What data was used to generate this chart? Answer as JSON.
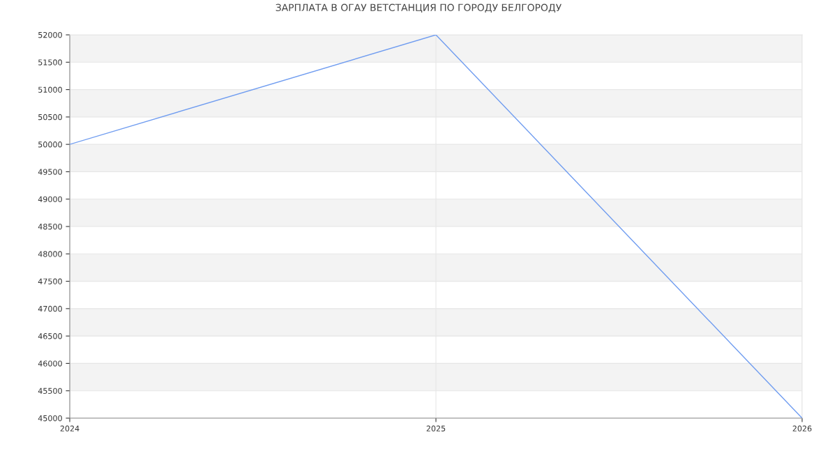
{
  "chart_data": {
    "type": "line",
    "title": "ЗАРПЛАТА В ОГАУ ВЕТСТАНЦИЯ ПО ГОРОДУ БЕЛГОРОДУ",
    "x": [
      2024,
      2025,
      2026
    ],
    "series": [
      {
        "color": "#6f9cf0",
        "values": [
          50000,
          52000,
          45000
        ]
      }
    ],
    "xlim": [
      2024,
      2026
    ],
    "xticks": [
      2024,
      2025,
      2026
    ],
    "ylim": [
      45000,
      52000
    ],
    "yticks": [
      45000,
      45500,
      46000,
      46500,
      47000,
      47500,
      48000,
      48500,
      49000,
      49500,
      50000,
      50500,
      51000,
      51500,
      52000
    ],
    "bands": [
      {
        "axis": "y",
        "from": 45500,
        "to": 46000,
        "color": "#f3f3f3"
      },
      {
        "axis": "y",
        "from": 46500,
        "to": 47000,
        "color": "#f3f3f3"
      },
      {
        "axis": "y",
        "from": 47500,
        "to": 48000,
        "color": "#f3f3f3"
      },
      {
        "axis": "y",
        "from": 48500,
        "to": 49000,
        "color": "#f3f3f3"
      },
      {
        "axis": "y",
        "from": 49500,
        "to": 50000,
        "color": "#f3f3f3"
      },
      {
        "axis": "y",
        "from": 50500,
        "to": 51000,
        "color": "#f3f3f3"
      },
      {
        "axis": "y",
        "from": 51500,
        "to": 52000,
        "color": "#f3f3f3"
      }
    ],
    "grid": true,
    "marker": "none",
    "line_style": "solid"
  }
}
